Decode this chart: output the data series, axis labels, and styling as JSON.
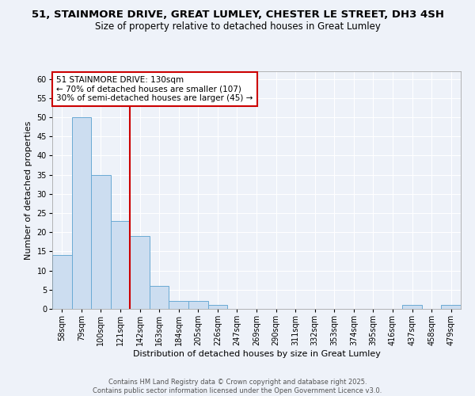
{
  "title_line1": "51, STAINMORE DRIVE, GREAT LUMLEY, CHESTER LE STREET, DH3 4SH",
  "title_line2": "Size of property relative to detached houses in Great Lumley",
  "xlabel": "Distribution of detached houses by size in Great Lumley",
  "ylabel": "Number of detached properties",
  "categories": [
    "58sqm",
    "79sqm",
    "100sqm",
    "121sqm",
    "142sqm",
    "163sqm",
    "184sqm",
    "205sqm",
    "226sqm",
    "247sqm",
    "269sqm",
    "290sqm",
    "311sqm",
    "332sqm",
    "353sqm",
    "374sqm",
    "395sqm",
    "416sqm",
    "437sqm",
    "458sqm",
    "479sqm"
  ],
  "values": [
    14,
    50,
    35,
    23,
    19,
    6,
    2,
    2,
    1,
    0,
    0,
    0,
    0,
    0,
    0,
    0,
    0,
    0,
    1,
    0,
    1
  ],
  "bar_color": "#ccddf0",
  "bar_edge_color": "#6aaad4",
  "vline_x_index": 3,
  "vline_color": "#cc0000",
  "annotation_text": "51 STAINMORE DRIVE: 130sqm\n← 70% of detached houses are smaller (107)\n30% of semi-detached houses are larger (45) →",
  "annotation_box_color": "#ffffff",
  "annotation_box_edge": "#cc0000",
  "ylim": [
    0,
    62
  ],
  "yticks": [
    0,
    5,
    10,
    15,
    20,
    25,
    30,
    35,
    40,
    45,
    50,
    55,
    60
  ],
  "footnote": "Contains HM Land Registry data © Crown copyright and database right 2025.\nContains public sector information licensed under the Open Government Licence v3.0.",
  "bg_color": "#eef2f9",
  "grid_color": "#ffffff",
  "title_fontsize": 9.5,
  "subtitle_fontsize": 8.5,
  "axis_label_fontsize": 8,
  "tick_fontsize": 7,
  "footnote_fontsize": 6,
  "annotation_fontsize": 7.5
}
